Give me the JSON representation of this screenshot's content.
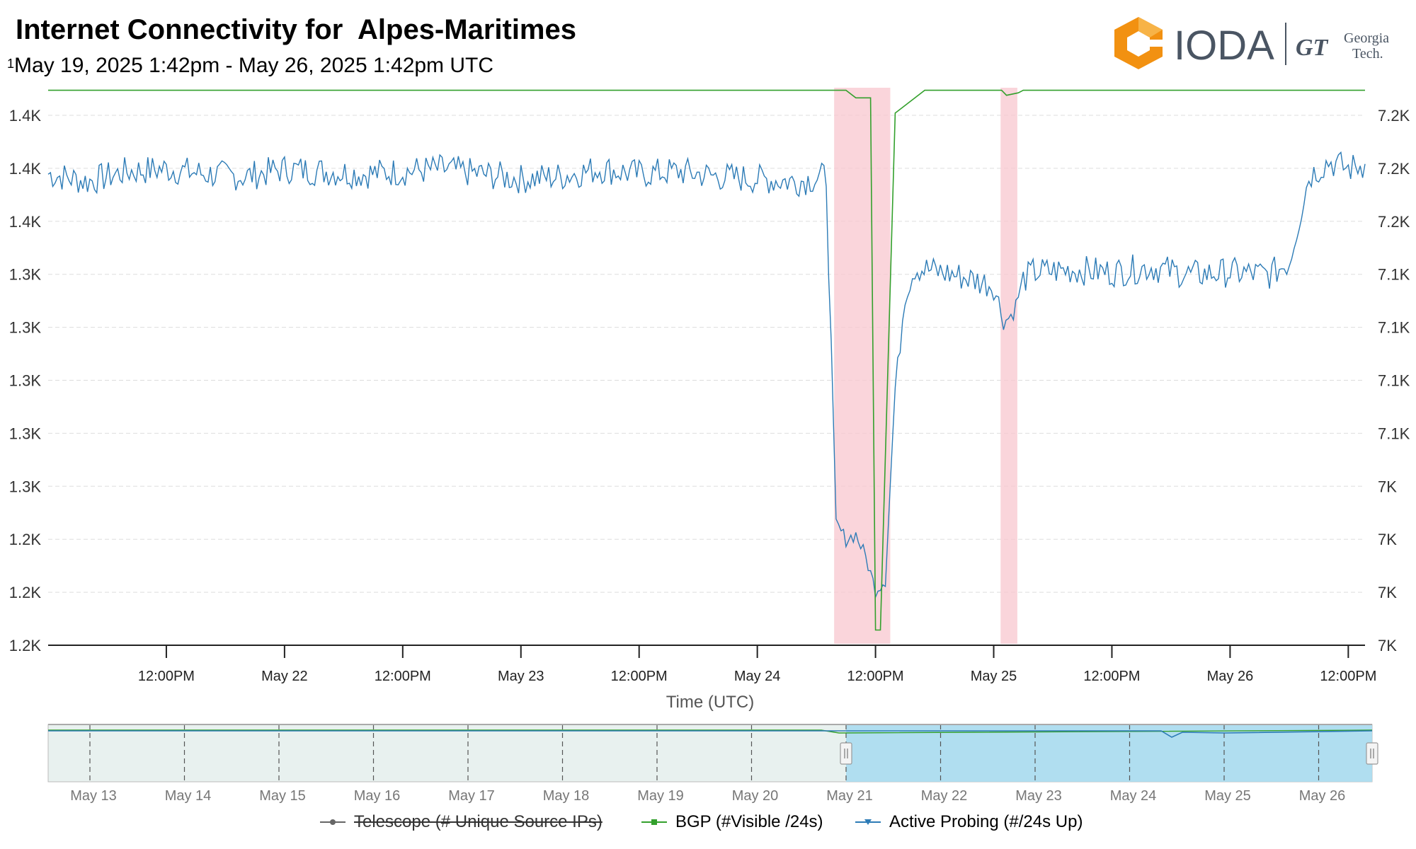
{
  "header": {
    "title": "Internet Connectivity for  Alpes-Maritimes",
    "subtitle_sup": "1",
    "subtitle": "May 19, 2025 1:42pm - May 26, 2025 1:42pm UTC"
  },
  "logo": {
    "ioda_text": "IODA",
    "gt_text": "GT",
    "georgia_text": "Georgia",
    "tech_text": "Tech.",
    "ioda_hex_color": "#f29111",
    "ioda_text_color": "#4a5563"
  },
  "chart_data": {
    "type": "line",
    "xlabel": "Time (UTC)",
    "x_ticks": [
      "12:00PM",
      "May 22",
      "12:00PM",
      "May 23",
      "12:00PM",
      "May 24",
      "12:00PM",
      "May 25",
      "12:00PM",
      "May 26",
      "12:00PM"
    ],
    "x_tick_hours": [
      12,
      24,
      36,
      48,
      60,
      72,
      84,
      96,
      108,
      120,
      132
    ],
    "x_range_hours_from_may21_00": [
      0,
      133.7
    ],
    "y_left_ticks": [
      "1.2K",
      "1.2K",
      "1.2K",
      "1.3K",
      "1.3K",
      "1.3K",
      "1.3K",
      "1.3K",
      "1.4K",
      "1.4K",
      "1.4K"
    ],
    "y_left_range": [
      1200,
      1410
    ],
    "y_right_ticks": [
      "7K",
      "7K",
      "7K",
      "7K",
      "7.1K",
      "7.1K",
      "7.1K",
      "7.1K",
      "7.2K",
      "7.2K",
      "7.2K"
    ],
    "y_right_range": [
      6990,
      7210
    ],
    "grid": true,
    "outage_bands_hours": [
      [
        79.8,
        85.5
      ],
      [
        96.7,
        98.4
      ]
    ],
    "series": [
      {
        "name": "Active Probing (#/24s Up)",
        "color": "#2c7bb6",
        "axis": "left",
        "x_hours": [
          0,
          4,
          8,
          12,
          16,
          20,
          24,
          28,
          32,
          36,
          40,
          44,
          48,
          52,
          56,
          60,
          64,
          68,
          72,
          76,
          79,
          80,
          81,
          82,
          83,
          84,
          85,
          86,
          87,
          88,
          92,
          96,
          97,
          98,
          99,
          100,
          104,
          108,
          112,
          116,
          120,
          124,
          126,
          128,
          130,
          132,
          133.7
        ],
        "values": [
          1387,
          1384,
          1388,
          1389,
          1387,
          1386,
          1389,
          1388,
          1387,
          1388,
          1389,
          1387,
          1385,
          1386,
          1389,
          1387,
          1388,
          1386,
          1385,
          1384,
          1386,
          1248,
          1242,
          1244,
          1235,
          1222,
          1226,
          1302,
          1340,
          1350,
          1347,
          1343,
          1328,
          1332,
          1345,
          1348,
          1349,
          1348,
          1350,
          1347,
          1348,
          1347,
          1352,
          1386,
          1392,
          1389,
          1391
        ]
      },
      {
        "name": "BGP (#Visible /24s)",
        "color": "#33a02c",
        "axis": "right",
        "x_hours": [
          0,
          80.0,
          81.0,
          82.0,
          83.5,
          84.0,
          84.5,
          86.0,
          89.0,
          96.8,
          97.3,
          98.5,
          99.0,
          133.7
        ],
        "values": [
          7209,
          7209,
          7209,
          7206,
          7206,
          6996,
          6996,
          7200,
          7209,
          7209,
          7207,
          7208,
          7209,
          7209
        ]
      },
      {
        "name": "Telescope (# Unique Source IPs)",
        "color": "#555555",
        "hidden": true,
        "values": []
      }
    ],
    "navigator": {
      "labels": [
        "May 13",
        "May 14",
        "May 15",
        "May 16",
        "May 17",
        "May 18",
        "May 19",
        "May 20",
        "May 21",
        "May 22",
        "May 23",
        "May 24",
        "May 25",
        "May 26"
      ],
      "selected_from": "May 21",
      "selected_to": "May 26"
    }
  },
  "legend": {
    "telescope": "Telescope (# Unique Source IPs)",
    "bgp": "BGP (#Visible /24s)",
    "active": "Active Probing (#/24s Up)"
  }
}
